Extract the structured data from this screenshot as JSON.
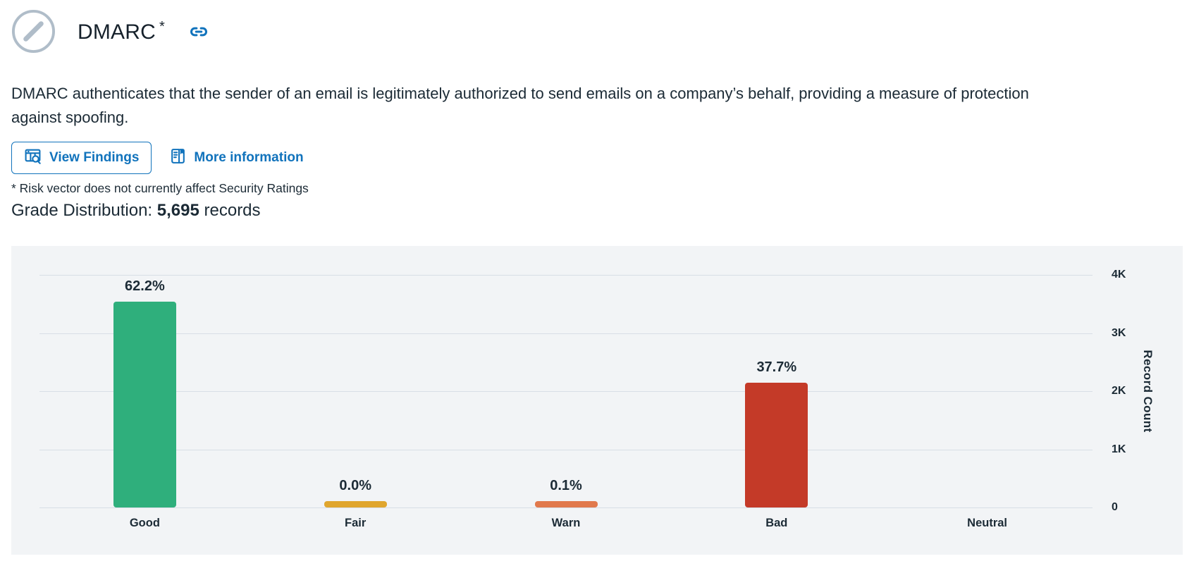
{
  "colors": {
    "accent_blue": "#1173bc",
    "text_dark": "#1c2b36",
    "grade_badge_gray": "#b0bdc9",
    "chart_background": "#f2f4f6",
    "gridline": "#d8dee6"
  },
  "header": {
    "title": "DMARC",
    "superscript": "*"
  },
  "description": "DMARC authenticates that the sender of an email is legitimately authorized to send emails on a company’s behalf, providing a measure of protection against spoofing.",
  "actions": {
    "view_findings": "View Findings",
    "more_information": "More information"
  },
  "footnote": "* Risk vector does not currently affect Security Ratings",
  "distribution_heading": {
    "label": "Grade Distribution:",
    "count": "5,695",
    "suffix": "records"
  },
  "chart_data": {
    "type": "bar",
    "title": "Grade Distribution: 5,695 records",
    "categories": [
      "Good",
      "Fair",
      "Warn",
      "Bad",
      "Neutral"
    ],
    "series": [
      {
        "name": "Record Count",
        "values": [
          3542,
          1,
          5,
          2147,
          0
        ],
        "percent_labels": [
          "62.2%",
          "0.0%",
          "0.1%",
          "37.7%",
          null
        ]
      }
    ],
    "bar_colors": [
      "#2faf7c",
      "#e0a62e",
      "#e1794c",
      "#c43a28",
      null
    ],
    "total_records": 5695,
    "xlabel": "",
    "ylabel": "Record Count",
    "ylim": [
      0,
      4000
    ],
    "yticks": [
      {
        "label": "0",
        "value": 0
      },
      {
        "label": "1K",
        "value": 1000
      },
      {
        "label": "2K",
        "value": 2000
      },
      {
        "label": "3K",
        "value": 3000
      },
      {
        "label": "4K",
        "value": 4000
      }
    ],
    "grid": true,
    "legend": false
  }
}
